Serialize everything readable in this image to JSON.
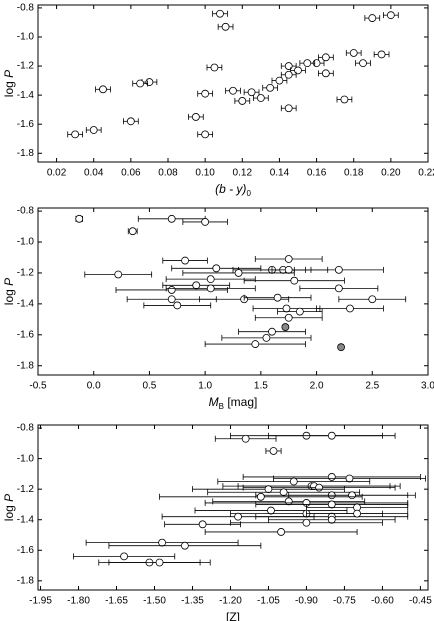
{
  "chart_data": [
    {
      "type": "scatter",
      "xlabel": {
        "main": "(b - y)",
        "sub": "0"
      },
      "ylabel": {
        "main": "log",
        "var": "P"
      },
      "xlim": [
        0.01,
        0.22
      ],
      "xticks": [
        0.02,
        0.04,
        0.06,
        0.08,
        {
          "value": 0.1,
          "label": "0.10"
        },
        0.12,
        0.14,
        0.16,
        0.18,
        {
          "value": 0.2,
          "label": "0.20"
        },
        0.22
      ],
      "ylim": [
        -1.86,
        -0.78
      ],
      "yticks": [
        -0.8,
        {
          "value": -1.0,
          "label": "-1.0"
        },
        -1.2,
        -1.4,
        -1.6,
        -1.8
      ],
      "series": [
        {
          "color": "#ffffff",
          "x": [
            0.108,
            0.111,
            0.2,
            0.19,
            0.18,
            0.195,
            0.185,
            0.16,
            0.165,
            0.155,
            0.145,
            0.15,
            0.165,
            0.145,
            0.105,
            0.14,
            0.07,
            0.065,
            0.135,
            0.125,
            0.115,
            0.1,
            0.045,
            0.12,
            0.13,
            0.175,
            0.145,
            0.06,
            0.095,
            0.04,
            0.03,
            0.1
          ],
          "y": [
            -0.84,
            -0.93,
            -0.85,
            -0.87,
            -1.11,
            -1.12,
            -1.18,
            -1.18,
            -1.14,
            -1.18,
            -1.2,
            -1.23,
            -1.25,
            -1.26,
            -1.21,
            -1.3,
            -1.31,
            -1.32,
            -1.35,
            -1.38,
            -1.37,
            -1.39,
            -1.36,
            -1.44,
            -1.42,
            -1.43,
            -1.49,
            -1.58,
            -1.55,
            -1.64,
            -1.67,
            -1.67
          ],
          "xerr": [
            0.004,
            0.004,
            0.004,
            0.004,
            0.004,
            0.004,
            0.004,
            0.004,
            0.004,
            0.004,
            0.004,
            0.004,
            0.004,
            0.004,
            0.004,
            0.004,
            0.004,
            0.004,
            0.004,
            0.004,
            0.004,
            0.004,
            0.004,
            0.004,
            0.004,
            0.004,
            0.004,
            0.004,
            0.004,
            0.004,
            0.004,
            0.004
          ]
        }
      ]
    },
    {
      "type": "scatter",
      "xlabel": {
        "main": "M",
        "sub": "B",
        "tail": " [mag]"
      },
      "ylabel": {
        "main": "log",
        "var": "P"
      },
      "xlim": [
        -0.5,
        3.0
      ],
      "xticks": [
        -0.5,
        {
          "value": 0.0,
          "label": "0.0"
        },
        0.5,
        {
          "value": 1.0,
          "label": "1.0"
        },
        1.5,
        {
          "value": 2.0,
          "label": "2.0"
        },
        2.5,
        {
          "value": 3.0,
          "label": "3.0"
        }
      ],
      "ylim": [
        -1.86,
        -0.78
      ],
      "yticks": [
        -0.8,
        {
          "value": -1.0,
          "label": "-1.0"
        },
        -1.2,
        -1.4,
        -1.6,
        -1.8
      ],
      "series": [
        {
          "color": "#ffffff",
          "x": [
            -0.13,
            0.35,
            0.7,
            1.0,
            0.82,
            1.75,
            1.1,
            1.6,
            1.7,
            1.75,
            2.2,
            0.22,
            1.3,
            1.05,
            0.92,
            1.8,
            0.7,
            1.05,
            2.2,
            0.7,
            1.35,
            1.65,
            2.5,
            0.75,
            1.73,
            1.85,
            2.3,
            1.75,
            1.6,
            1.55,
            1.45
          ],
          "y": [
            -0.85,
            -0.93,
            -0.85,
            -0.87,
            -1.12,
            -1.11,
            -1.17,
            -1.18,
            -1.18,
            -1.18,
            -1.18,
            -1.21,
            -1.2,
            -1.24,
            -1.28,
            -1.25,
            -1.31,
            -1.3,
            -1.3,
            -1.37,
            -1.37,
            -1.36,
            -1.37,
            -1.41,
            -1.43,
            -1.45,
            -1.43,
            -1.49,
            -1.58,
            -1.62,
            -1.66
          ],
          "xerr": [
            0.03,
            0.04,
            0.3,
            0.2,
            0.2,
            0.3,
            0.4,
            0.35,
            0.4,
            0.15,
            0.4,
            0.3,
            0.5,
            0.4,
            0.3,
            0.45,
            0.5,
            0.4,
            0.35,
            0.4,
            0.4,
            0.3,
            0.3,
            0.3,
            0.3,
            0.2,
            0.3,
            0.3,
            0.3,
            0.4,
            0.45
          ]
        },
        {
          "color": "#888888",
          "x": [
            1.72,
            2.22
          ],
          "y": [
            -1.55,
            -1.68
          ],
          "xerr": [
            0.02,
            0.02
          ]
        }
      ]
    },
    {
      "type": "scatter",
      "xlabel": {
        "main": "[Z]"
      },
      "ylabel": {
        "main": "log",
        "var": "P"
      },
      "xlim": [
        -1.96,
        -0.42
      ],
      "xticks": [
        -1.95,
        {
          "value": -1.8,
          "label": "-1.80"
        },
        -1.65,
        {
          "value": -1.5,
          "label": "-1.50"
        },
        -1.35,
        {
          "value": -1.2,
          "label": "-1.20"
        },
        -1.05,
        {
          "value": -0.9,
          "label": "-0.90"
        },
        -0.75,
        {
          "value": -0.6,
          "label": "-0.60"
        },
        -0.45
      ],
      "ylim": [
        -1.86,
        -0.78
      ],
      "yticks": [
        -0.8,
        {
          "value": -1.0,
          "label": "-1.0"
        },
        -1.2,
        -1.4,
        -1.6,
        -1.8
      ],
      "series": [
        {
          "color": "#ffffff",
          "x": [
            -0.9,
            -0.8,
            -1.14,
            -1.03,
            -0.8,
            -0.73,
            -0.95,
            -0.88,
            -0.87,
            -0.85,
            -1.05,
            -0.99,
            -0.8,
            -0.72,
            -1.08,
            -0.97,
            -0.9,
            -0.8,
            -0.7,
            -1.04,
            -0.9,
            -0.8,
            -0.7,
            -0.8,
            -1.17,
            -0.9,
            -1.31,
            -1.0,
            -1.47,
            -1.38,
            -1.62,
            -1.52,
            -1.48
          ],
          "y": [
            -0.85,
            -0.85,
            -0.87,
            -0.95,
            -1.12,
            -1.13,
            -1.15,
            -1.18,
            -1.18,
            -1.19,
            -1.2,
            -1.22,
            -1.24,
            -1.24,
            -1.25,
            -1.28,
            -1.29,
            -1.3,
            -1.32,
            -1.34,
            -1.36,
            -1.38,
            -1.36,
            -1.4,
            -1.38,
            -1.42,
            -1.43,
            -1.48,
            -1.55,
            -1.57,
            -1.64,
            -1.68,
            -1.68
          ],
          "xerr": [
            0.3,
            0.25,
            0.12,
            0.03,
            0.35,
            0.3,
            0.3,
            0.35,
            0.3,
            0.3,
            0.3,
            0.3,
            0.3,
            0.25,
            0.4,
            0.3,
            0.4,
            0.3,
            0.2,
            0.3,
            0.3,
            0.3,
            0.2,
            0.25,
            0.3,
            0.3,
            0.15,
            0.3,
            0.3,
            0.3,
            0.2,
            0.2,
            0.2
          ]
        }
      ]
    }
  ]
}
